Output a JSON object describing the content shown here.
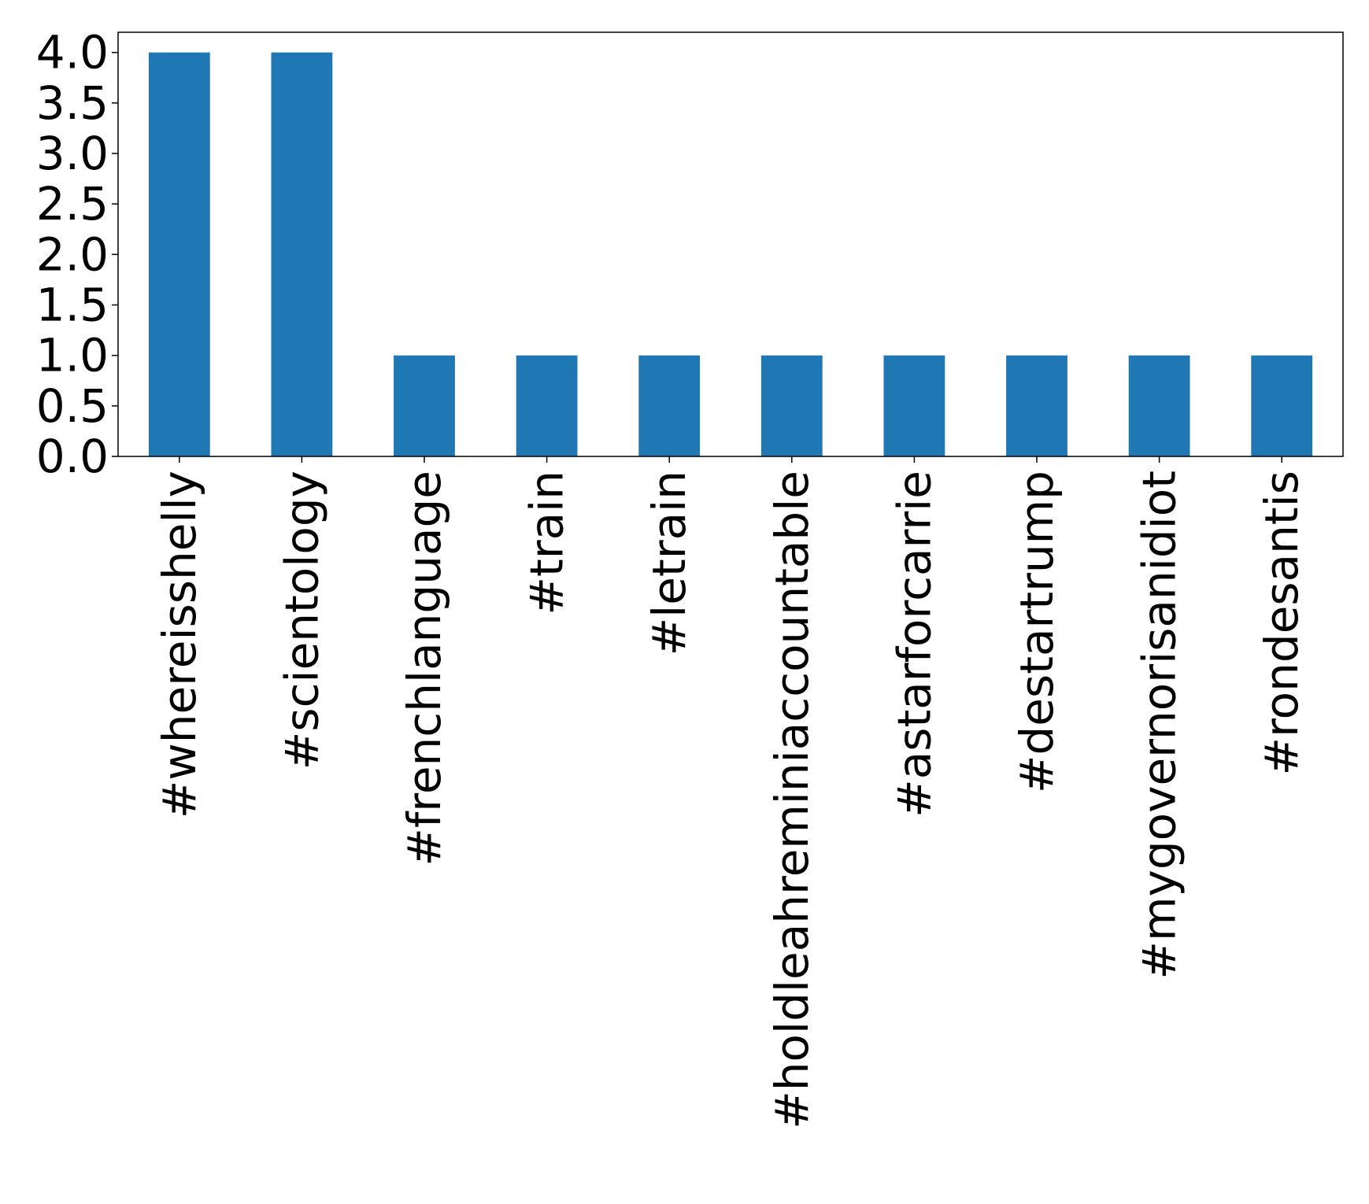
{
  "chart_data": {
    "type": "bar",
    "title": "",
    "xlabel": "",
    "ylabel": "",
    "categories": [
      "#whereisshelly",
      "#scientology",
      "#frenchlanguage",
      "#train",
      "#letrain",
      "#holdleahreminiaccountable",
      "#astarforcarrie",
      "#destartrump",
      "#mygovernorisanidiot",
      "#rondesantis"
    ],
    "values": [
      4,
      4,
      1,
      1,
      1,
      1,
      1,
      1,
      1,
      1
    ],
    "ylim": [
      0,
      4.2
    ],
    "yticks": [
      "0.0",
      "0.5",
      "1.0",
      "1.5",
      "2.0",
      "2.5",
      "3.0",
      "3.5",
      "4.0"
    ],
    "bar_color": "#1f77b4",
    "grid": false,
    "legend": "none"
  }
}
